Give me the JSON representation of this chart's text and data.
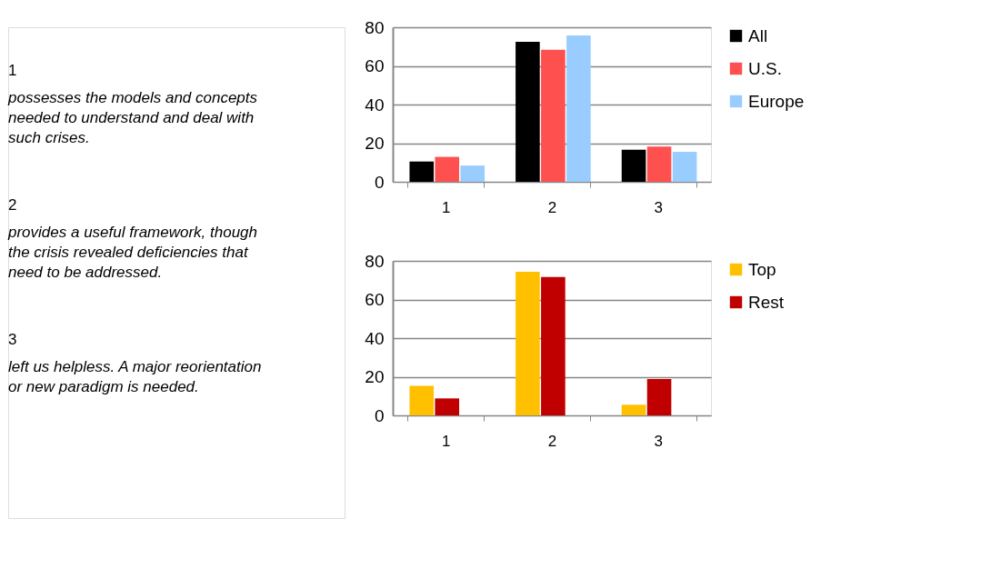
{
  "chart_data": [
    {
      "type": "bar",
      "categories": [
        "1",
        "2",
        "3"
      ],
      "series": [
        {
          "name": "All",
          "color": "#000000",
          "values": [
            10.5,
            72.5,
            16.6
          ]
        },
        {
          "name": "U.S.",
          "color": "#ff5050",
          "values": [
            12.9,
            68.4,
            18.2
          ]
        },
        {
          "name": "Europe",
          "color": "#99ccff",
          "values": [
            8.4,
            75.8,
            15.5
          ]
        }
      ],
      "ylim": [
        0,
        80
      ],
      "yticks": [
        0,
        20,
        40,
        60,
        80
      ],
      "grid": "y",
      "legend": "right",
      "annotations": [
        "1",
        "possesses the models and concepts\nneeded to understand and deal with\nsuch crises.",
        "2",
        "provides a useful framework, though\nthe crisis revealed deficiencies that\nneed to be addressed.",
        "3",
        "left us helpless. A major reorientation\nor new paradigm is needed."
      ]
    },
    {
      "type": "bar",
      "categories": [
        "1",
        "2",
        "3"
      ],
      "series": [
        {
          "name": "Top",
          "color": "#ffc000",
          "values": [
            15.3,
            74.4,
            5.5
          ]
        },
        {
          "name": "Rest",
          "color": "#c00000",
          "values": [
            8.8,
            71.7,
            18.8
          ]
        }
      ],
      "ylim": [
        0,
        80
      ],
      "yticks": [
        0,
        20,
        40,
        60,
        80
      ],
      "grid": "y",
      "legend": "right"
    }
  ]
}
